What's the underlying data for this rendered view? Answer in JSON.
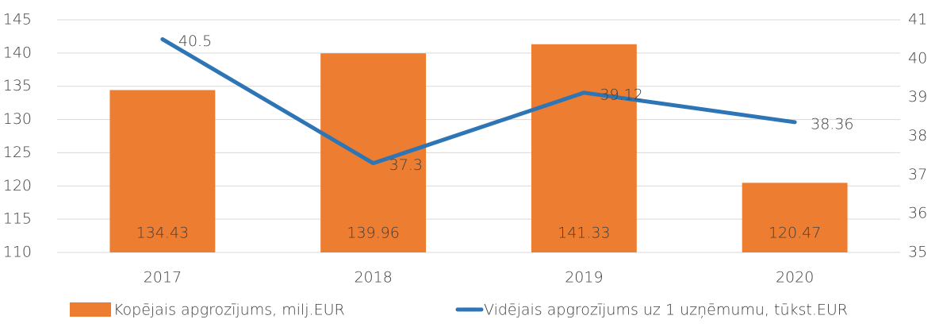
{
  "chart_data": {
    "type": "bar",
    "categories": [
      "2017",
      "2018",
      "2019",
      "2020"
    ],
    "series": [
      {
        "name": "Kopējais apgrozījums, milj.EUR",
        "type": "bar",
        "color": "#ed7d31",
        "values": [
          134.43,
          139.96,
          141.33,
          120.47
        ]
      },
      {
        "name": "Vidējais apgrozījums uz 1 uzņēmumu, tūkst.EUR",
        "type": "line",
        "axis": "y2",
        "color": "#2e75b6",
        "values": [
          40.5,
          37.3,
          39.12,
          38.36
        ]
      }
    ],
    "ylim": [
      110,
      145
    ],
    "yticks": [
      110,
      115,
      120,
      125,
      130,
      135,
      140,
      145
    ],
    "y2lim": [
      35,
      41
    ],
    "y2ticks": [
      35,
      36,
      37,
      38,
      39,
      40,
      41
    ],
    "grid": true,
    "data_labels": true,
    "legend": "bottom"
  }
}
